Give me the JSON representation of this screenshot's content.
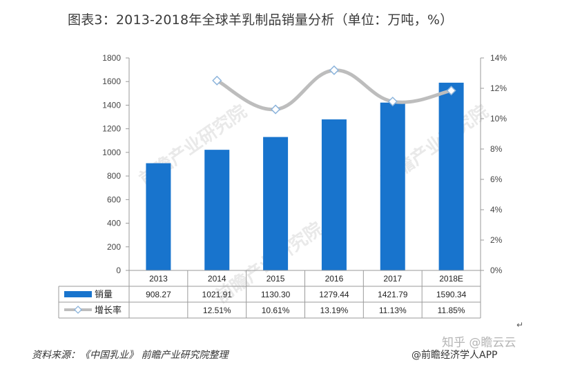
{
  "header": {
    "title": "图表3：2013-2018年全球羊乳制品销量分析（单位：万吨，%）"
  },
  "footer": {
    "source": "资料来源：《中国乳业》 前瞻产业研究院整理",
    "brand": "@前瞻经济学人APP",
    "zhihu": "知乎 @瞻云云",
    "return_glyph": "↵"
  },
  "watermarks": {
    "text": "前瞻产业研究院"
  },
  "colors": {
    "bar": "#1874cd",
    "line": "#bdbdbd",
    "marker_fill": "#ffffff",
    "marker_stroke": "#8cb4dc",
    "axis": "#999999"
  },
  "chart_data": {
    "type": "bar",
    "categories": [
      "2013",
      "2014",
      "2015",
      "2016",
      "2017",
      "2018E"
    ],
    "series": [
      {
        "name": "销量",
        "type": "bar",
        "axis": "left",
        "values": [
          908.27,
          1021.91,
          1130.3,
          1279.44,
          1421.79,
          1590.34
        ],
        "labels": [
          "908.27",
          "1021.91",
          "1130.30",
          "1279.44",
          "1421.79",
          "1590.34"
        ]
      },
      {
        "name": "增长率",
        "type": "line",
        "axis": "right",
        "smooth": true,
        "values": [
          null,
          12.51,
          10.61,
          13.19,
          11.13,
          11.85
        ],
        "labels": [
          "",
          "12.51%",
          "10.61%",
          "13.19%",
          "11.13%",
          "11.85%"
        ]
      }
    ],
    "y_left": {
      "min": 0,
      "max": 1800,
      "step": 200,
      "ticks": [
        "0",
        "200",
        "400",
        "600",
        "800",
        "1000",
        "1200",
        "1400",
        "1600",
        "1800"
      ]
    },
    "y_right": {
      "min": 0,
      "max": 14,
      "step": 2,
      "ticks": [
        "0%",
        "2%",
        "4%",
        "6%",
        "8%",
        "10%",
        "12%",
        "14%"
      ]
    },
    "grid": false,
    "legend": "data-table"
  }
}
